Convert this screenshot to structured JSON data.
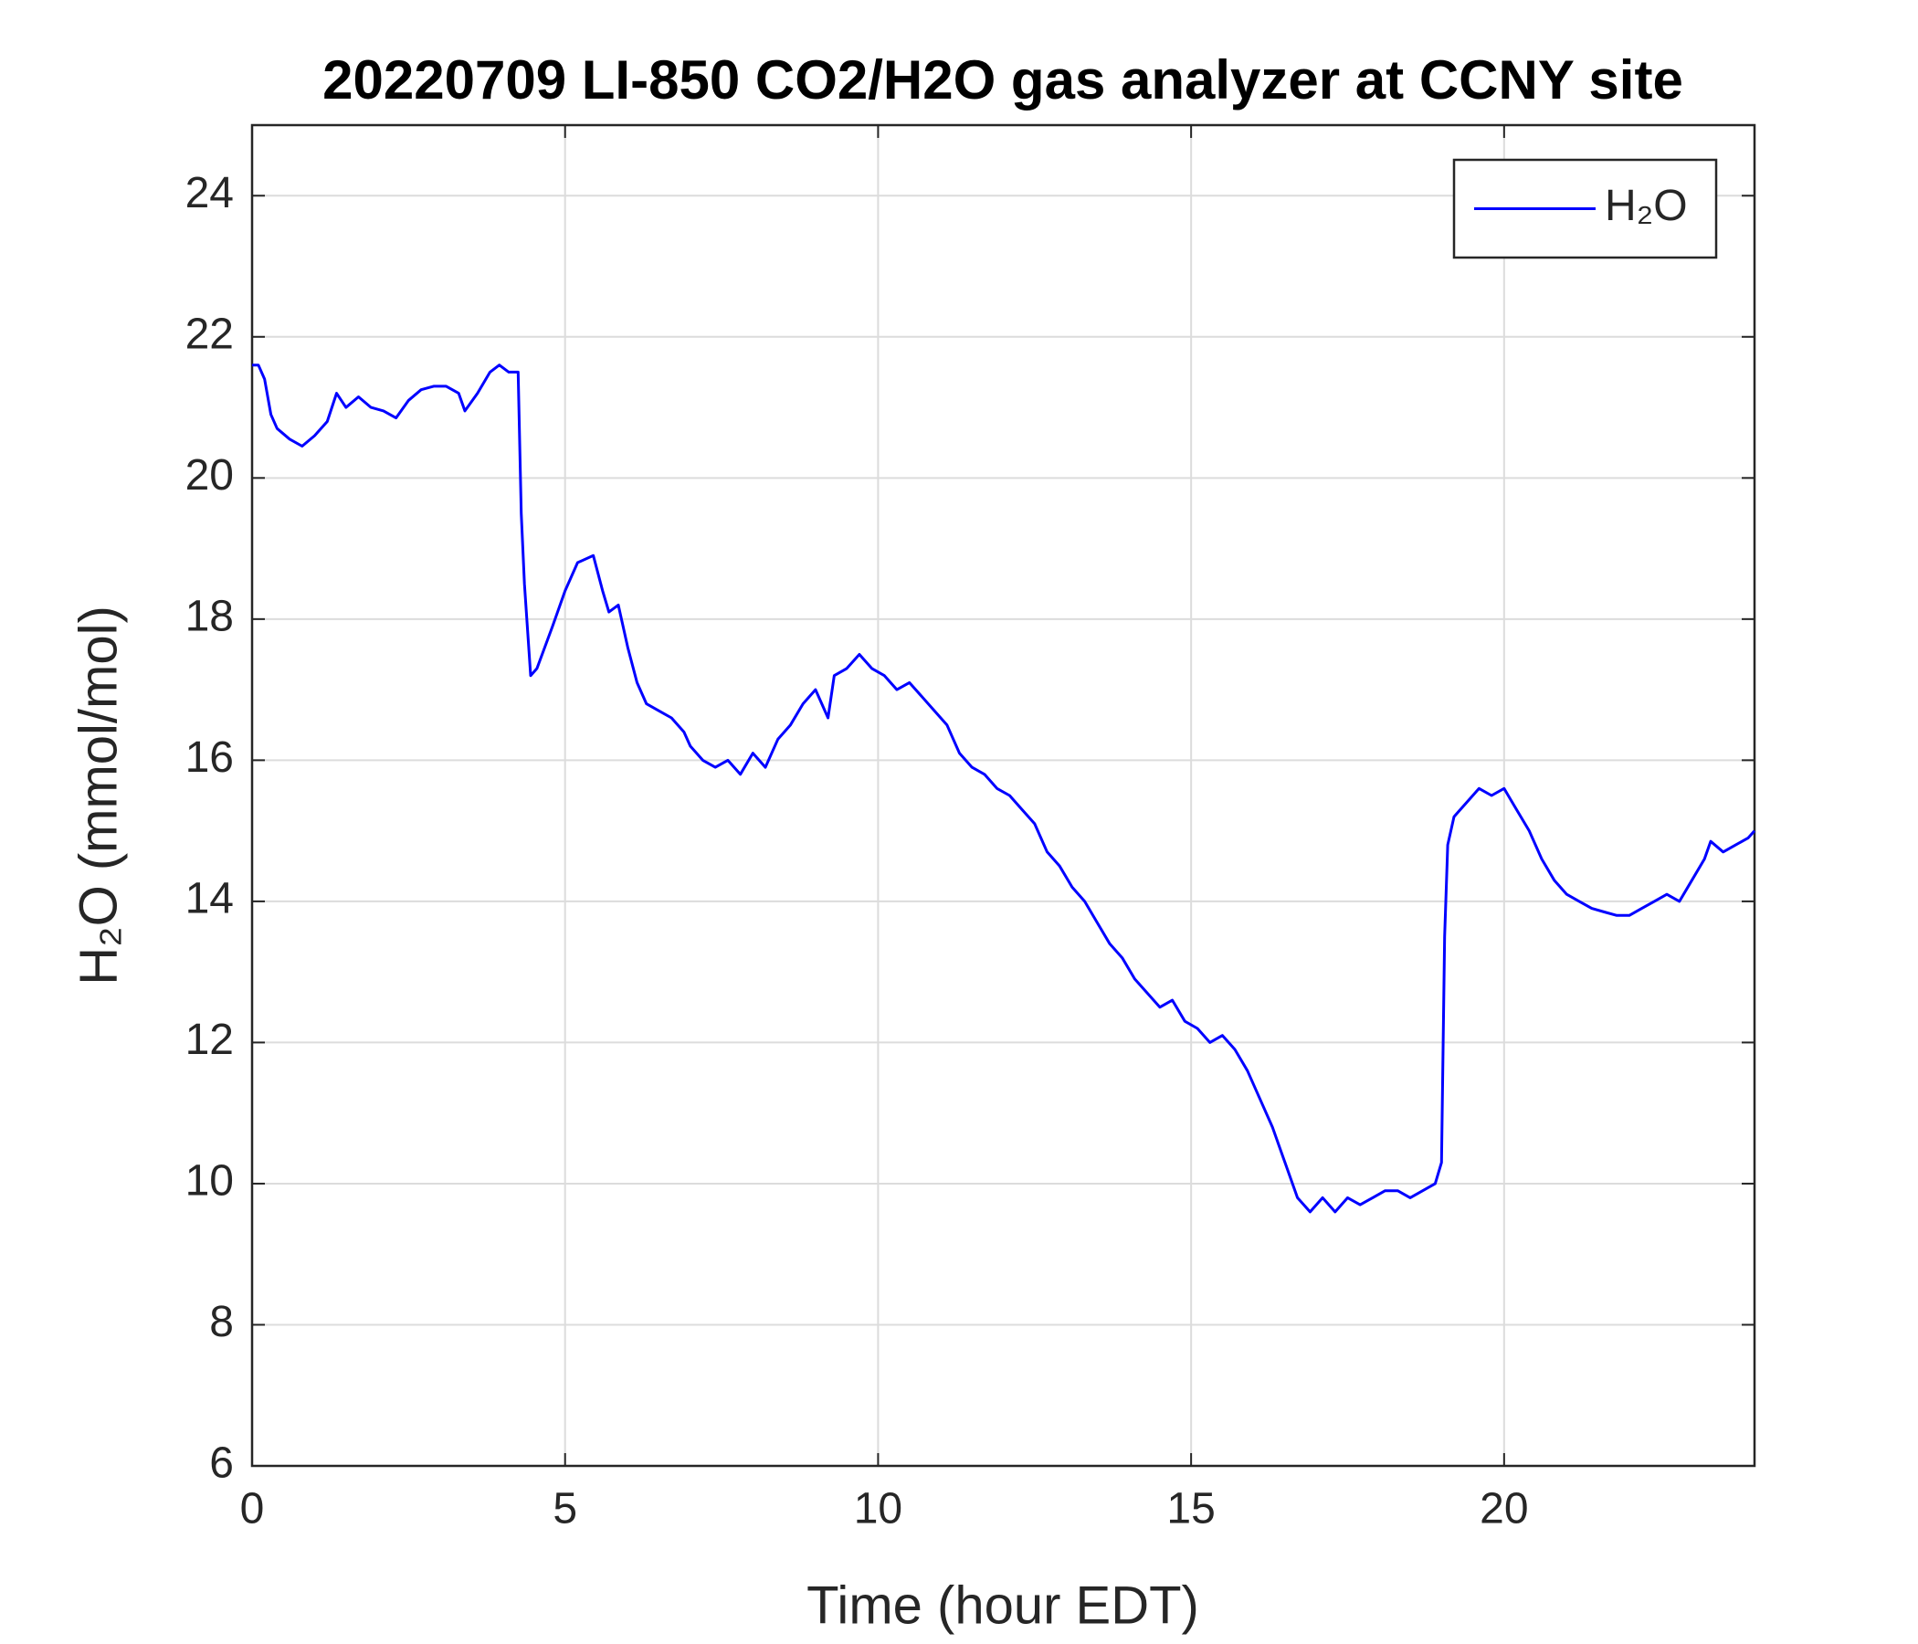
{
  "chart_data": {
    "type": "line",
    "title": "20220709 LI-850 CO2/H2O gas analyzer at CCNY site",
    "xlabel": "Time (hour EDT)",
    "ylabel": "H₂O (mmol/mol)",
    "x": [
      0,
      0.1,
      0.2,
      0.3,
      0.4,
      0.6,
      0.8,
      1.0,
      1.2,
      1.35,
      1.5,
      1.7,
      1.9,
      2.1,
      2.3,
      2.5,
      2.7,
      2.9,
      3.1,
      3.3,
      3.4,
      3.6,
      3.8,
      3.95,
      4.1,
      4.25,
      4.3,
      4.35,
      4.45,
      4.55,
      4.8,
      5.0,
      5.2,
      5.45,
      5.6,
      5.7,
      5.85,
      6.0,
      6.15,
      6.3,
      6.5,
      6.7,
      6.9,
      7.0,
      7.2,
      7.4,
      7.6,
      7.8,
      8.0,
      8.2,
      8.4,
      8.6,
      8.8,
      9.0,
      9.2,
      9.3,
      9.5,
      9.7,
      9.9,
      10.1,
      10.3,
      10.5,
      10.7,
      10.9,
      11.1,
      11.3,
      11.5,
      11.7,
      11.9,
      12.1,
      12.3,
      12.5,
      12.7,
      12.9,
      13.1,
      13.3,
      13.5,
      13.7,
      13.9,
      14.1,
      14.3,
      14.5,
      14.7,
      14.9,
      15.1,
      15.3,
      15.5,
      15.7,
      15.9,
      16.1,
      16.3,
      16.5,
      16.7,
      16.9,
      17.1,
      17.3,
      17.5,
      17.7,
      17.9,
      18.1,
      18.3,
      18.5,
      18.7,
      18.9,
      19.0,
      19.05,
      19.1,
      19.2,
      19.4,
      19.6,
      19.8,
      20.0,
      20.2,
      20.4,
      20.6,
      20.8,
      21.0,
      21.2,
      21.4,
      21.6,
      21.8,
      22.0,
      22.2,
      22.4,
      22.6,
      22.8,
      23.0,
      23.2,
      23.3,
      23.5,
      23.7,
      23.9,
      24
    ],
    "series": [
      {
        "name": "H₂O",
        "color": "#0000ff",
        "values": [
          21.6,
          21.6,
          21.4,
          20.9,
          20.7,
          20.55,
          20.45,
          20.6,
          20.8,
          21.2,
          21.0,
          21.15,
          21.0,
          20.95,
          20.85,
          21.1,
          21.25,
          21.3,
          21.3,
          21.2,
          20.95,
          21.2,
          21.5,
          21.6,
          21.5,
          21.5,
          19.5,
          18.5,
          17.2,
          17.3,
          17.9,
          18.4,
          18.8,
          18.9,
          18.4,
          18.1,
          18.2,
          17.6,
          17.1,
          16.8,
          16.7,
          16.6,
          16.4,
          16.2,
          16.0,
          15.9,
          16.0,
          15.8,
          16.1,
          15.9,
          16.3,
          16.5,
          16.8,
          17.0,
          16.6,
          17.2,
          17.3,
          17.5,
          17.3,
          17.2,
          17.0,
          17.1,
          16.9,
          16.7,
          16.5,
          16.1,
          15.9,
          15.8,
          15.6,
          15.5,
          15.3,
          15.1,
          14.7,
          14.5,
          14.2,
          14.0,
          13.7,
          13.4,
          13.2,
          12.9,
          12.7,
          12.5,
          12.6,
          12.3,
          12.2,
          12.0,
          12.1,
          11.9,
          11.6,
          11.2,
          10.8,
          10.3,
          9.8,
          9.6,
          9.8,
          9.6,
          9.8,
          9.7,
          9.8,
          9.9,
          9.9,
          9.8,
          9.9,
          10.0,
          10.3,
          13.5,
          14.8,
          15.2,
          15.4,
          15.6,
          15.5,
          15.6,
          15.3,
          15.0,
          14.6,
          14.3,
          14.1,
          14.0,
          13.9,
          13.85,
          13.8,
          13.8,
          13.9,
          14.0,
          14.1,
          14.0,
          14.3,
          14.6,
          14.85,
          14.7,
          14.8,
          14.9,
          15.0
        ]
      }
    ],
    "xlim": [
      0,
      24
    ],
    "xticks": [
      0,
      5,
      10,
      15,
      20
    ],
    "ylim": [
      6,
      25
    ],
    "yticks": [
      6,
      8,
      10,
      12,
      14,
      16,
      18,
      20,
      22,
      24
    ],
    "grid": true,
    "legend": "upper right"
  }
}
